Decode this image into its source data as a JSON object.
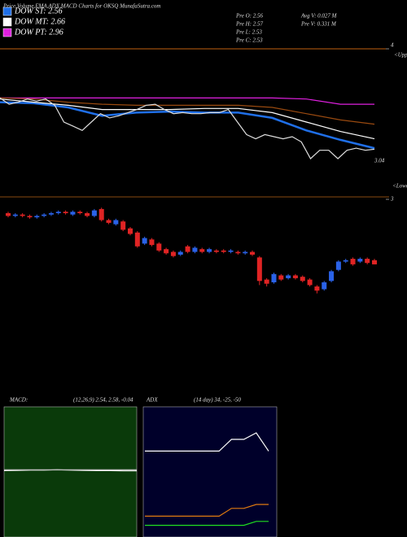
{
  "chart_data": [
    {
      "type": "line",
      "title": "Price,Volume,EMA,ADX,MACD Charts for OKSQ MunafaSutra.com",
      "annotations": [
        "Pre  O: 2.56",
        "Pre  H: 2.57",
        "Pre  L: 2.53",
        "Pre  C: 2.53",
        "Avg V: 0.027 M",
        "Pre  V: 0.331 M"
      ],
      "upper_label": "<Upper",
      "lower_label": "<Lower",
      "last_value": 3.04,
      "ylim": [
        2.6,
        4.0
      ],
      "yticks": [
        4
      ],
      "series": [
        {
          "name": "DOW ST: 2.56",
          "color": "#1f6fe8",
          "values": [
            3.49,
            3.48,
            3.44,
            3.36,
            3.39,
            3.4,
            3.39,
            3.39,
            3.34,
            3.22,
            3.13,
            3.05
          ]
        },
        {
          "name": "DOW MT: 2.66",
          "color": "#ffffff",
          "values": [
            3.52,
            3.49,
            3.46,
            3.42,
            3.42,
            3.42,
            3.43,
            3.43,
            3.39,
            3.3,
            3.21,
            3.14
          ]
        },
        {
          "name": "DOW PT: 2.96",
          "color": "#e020e0",
          "values": [
            3.53,
            3.53,
            3.53,
            3.53,
            3.53,
            3.53,
            3.53,
            3.53,
            3.53,
            3.52,
            3.47,
            3.47
          ]
        },
        {
          "color": "#9a4a10",
          "values": [
            3.53,
            3.52,
            3.49,
            3.47,
            3.46,
            3.46,
            3.46,
            3.46,
            3.44,
            3.38,
            3.32,
            3.28
          ]
        },
        {
          "color": "#dddddd",
          "values": [
            3.53,
            3.47,
            3.49,
            3.52,
            3.5,
            3.52,
            3.46,
            3.3,
            3.26,
            3.22,
            3.3,
            3.38,
            3.34,
            3.36,
            3.39,
            3.42,
            3.46,
            3.47,
            3.42,
            3.38,
            3.39,
            3.38,
            3.38,
            3.39,
            3.39,
            3.42,
            3.3,
            3.18,
            3.14,
            3.18,
            3.16,
            3.14,
            3.16,
            3.11,
            2.95,
            3.03,
            3.03,
            2.95,
            3.03,
            3.05,
            3.03,
            3.04
          ]
        }
      ]
    },
    {
      "type": "candlestick",
      "ylim": [
        1.6,
        3.0
      ],
      "yticks": [
        3
      ],
      "up_color": "#2a62e8",
      "down_color": "#e02424",
      "open": [
        2.9,
        2.88,
        2.89,
        2.88,
        2.87,
        2.88,
        2.89,
        2.9,
        2.91,
        2.89,
        2.91,
        2.9,
        2.88,
        2.93,
        2.85,
        2.82,
        2.84,
        2.79,
        2.76,
        2.68,
        2.71,
        2.68,
        2.64,
        2.62,
        2.6,
        2.66,
        2.62,
        2.64,
        2.62,
        2.63,
        2.63,
        2.62,
        2.62,
        2.61,
        2.62,
        2.58,
        2.42,
        2.4,
        2.45,
        2.43,
        2.45,
        2.44,
        2.42,
        2.37,
        2.35,
        2.41,
        2.49,
        2.55,
        2.57,
        2.55,
        2.57,
        2.56
      ],
      "high": [
        2.91,
        2.9,
        2.9,
        2.89,
        2.89,
        2.9,
        2.91,
        2.92,
        2.92,
        2.92,
        2.92,
        2.91,
        2.93,
        2.94,
        2.86,
        2.86,
        2.85,
        2.8,
        2.77,
        2.73,
        2.72,
        2.69,
        2.65,
        2.63,
        2.63,
        2.67,
        2.66,
        2.65,
        2.65,
        2.64,
        2.64,
        2.64,
        2.63,
        2.63,
        2.63,
        2.59,
        2.43,
        2.47,
        2.46,
        2.46,
        2.46,
        2.45,
        2.43,
        2.38,
        2.41,
        2.49,
        2.56,
        2.57,
        2.58,
        2.58,
        2.58,
        2.57
      ],
      "low": [
        2.87,
        2.87,
        2.87,
        2.86,
        2.86,
        2.87,
        2.88,
        2.89,
        2.89,
        2.88,
        2.89,
        2.87,
        2.87,
        2.84,
        2.82,
        2.81,
        2.77,
        2.74,
        2.65,
        2.67,
        2.66,
        2.62,
        2.6,
        2.58,
        2.59,
        2.61,
        2.61,
        2.61,
        2.61,
        2.61,
        2.61,
        2.61,
        2.6,
        2.6,
        2.59,
        2.38,
        2.37,
        2.39,
        2.41,
        2.42,
        2.42,
        2.4,
        2.37,
        2.32,
        2.34,
        2.4,
        2.48,
        2.54,
        2.52,
        2.54,
        2.53,
        2.53
      ],
      "close": [
        2.88,
        2.89,
        2.88,
        2.87,
        2.88,
        2.89,
        2.9,
        2.91,
        2.9,
        2.91,
        2.9,
        2.88,
        2.92,
        2.85,
        2.83,
        2.85,
        2.78,
        2.75,
        2.66,
        2.72,
        2.67,
        2.63,
        2.61,
        2.59,
        2.62,
        2.62,
        2.65,
        2.62,
        2.64,
        2.62,
        2.62,
        2.63,
        2.61,
        2.62,
        2.6,
        2.41,
        2.39,
        2.46,
        2.42,
        2.45,
        2.43,
        2.41,
        2.38,
        2.34,
        2.4,
        2.48,
        2.55,
        2.56,
        2.53,
        2.57,
        2.54,
        2.53
      ]
    },
    {
      "type": "line",
      "title": "MACD:",
      "subtitle": "(12,26,9) 2.54, 2.58, -0.04",
      "ylim": [
        0,
        5
      ],
      "series": [
        {
          "color": "#ffffff",
          "values": [
            2.55,
            2.56,
            2.57,
            2.57,
            2.58,
            2.57,
            2.56,
            2.55,
            2.55,
            2.54,
            2.54
          ]
        },
        {
          "color": "#bbbbbb",
          "values": [
            2.58,
            2.58,
            2.58,
            2.58,
            2.58,
            2.58,
            2.58,
            2.58,
            2.58,
            2.58,
            2.58
          ]
        }
      ]
    },
    {
      "type": "line",
      "title": "ADX",
      "subtitle": "(14 day) 34, -25, -50",
      "ylim": [
        0,
        100
      ],
      "series": [
        {
          "color": "#ffffff",
          "values": [
            66,
            66,
            66,
            66,
            66,
            66,
            66,
            75,
            75,
            80,
            66
          ]
        },
        {
          "color": "#e07a10",
          "values": [
            16,
            16,
            16,
            16,
            16,
            16,
            16,
            22,
            22,
            25,
            25
          ]
        },
        {
          "color": "#20e020",
          "values": [
            9,
            9,
            9,
            9,
            9,
            9,
            9,
            9,
            9,
            12,
            12
          ]
        }
      ]
    }
  ]
}
